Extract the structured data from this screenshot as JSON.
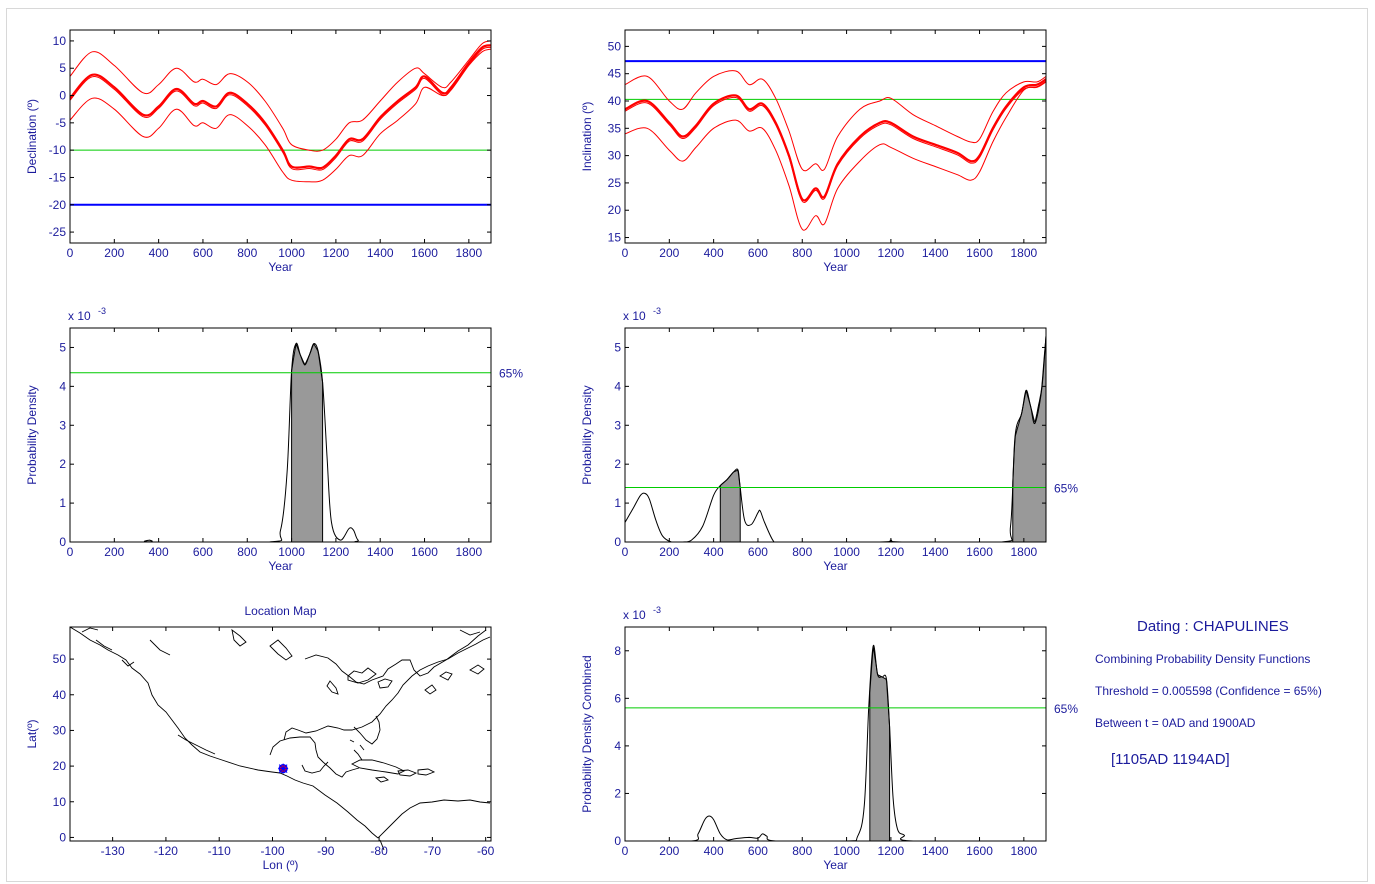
{
  "colors": {
    "axis": "#000000",
    "tick_text": "#1b1b9c",
    "curve": "#ff0000",
    "reference_blue": "#0000ff",
    "reference_green": "#00cc00",
    "fill_gray": "#999999",
    "density_line": "#000000",
    "map_marker": "#0000ff"
  },
  "chart_data": [
    {
      "id": "declination",
      "type": "line",
      "xlabel": "Year",
      "ylabel": "Declination (º)",
      "xlim": [
        0,
        1900
      ],
      "ylim": [
        -27,
        12
      ],
      "xticks": [
        0,
        200,
        400,
        600,
        800,
        1000,
        1200,
        1400,
        1600,
        1800
      ],
      "yticks": [
        -25,
        -20,
        -15,
        -10,
        -5,
        0,
        5,
        10
      ],
      "reference_lines": [
        {
          "color": "blue",
          "y": -20
        },
        {
          "color": "green",
          "y": -10
        }
      ],
      "series": [
        {
          "role": "mean",
          "x": [
            0,
            100,
            200,
            330,
            400,
            480,
            560,
            600,
            660,
            720,
            800,
            880,
            960,
            1000,
            1080,
            1140,
            1200,
            1260,
            1320,
            1400,
            1480,
            1560,
            1600,
            1680,
            1720,
            1800,
            1860,
            1900
          ],
          "y": [
            -0.5,
            3.8,
            1.5,
            -3.5,
            -2.0,
            1.2,
            -1.5,
            -1.0,
            -2.0,
            0.5,
            -1.5,
            -5.0,
            -10.0,
            -13.0,
            -13.0,
            -13.2,
            -11.0,
            -8.0,
            -8.0,
            -4.0,
            -1.0,
            1.5,
            3.5,
            0.5,
            1.5,
            6.0,
            8.8,
            9.2
          ]
        },
        {
          "role": "upper",
          "x": [
            0,
            100,
            200,
            330,
            400,
            480,
            560,
            600,
            660,
            720,
            800,
            880,
            960,
            1000,
            1080,
            1140,
            1200,
            1260,
            1320,
            1400,
            1480,
            1560,
            1600,
            1680,
            1720,
            1800,
            1860,
            1900
          ],
          "y": [
            3.5,
            8.0,
            5.5,
            0.5,
            2.0,
            5.0,
            2.5,
            3.0,
            2.0,
            4.0,
            2.5,
            -1.0,
            -6.0,
            -9.0,
            -10.0,
            -10.0,
            -8.0,
            -5.0,
            -4.5,
            -1.0,
            2.5,
            5.0,
            4.0,
            1.5,
            2.5,
            6.5,
            9.5,
            10.0
          ]
        },
        {
          "role": "lower",
          "x": [
            0,
            100,
            200,
            330,
            400,
            480,
            560,
            600,
            660,
            720,
            800,
            880,
            960,
            1000,
            1080,
            1140,
            1200,
            1260,
            1320,
            1400,
            1480,
            1560,
            1600,
            1680,
            1720,
            1800,
            1860,
            1900
          ],
          "y": [
            -4.5,
            -0.5,
            -2.5,
            -7.5,
            -6.0,
            -2.5,
            -5.5,
            -5.0,
            -6.0,
            -3.5,
            -5.5,
            -9.0,
            -14.0,
            -15.5,
            -15.8,
            -15.5,
            -13.5,
            -11.0,
            -11.0,
            -7.0,
            -4.5,
            -1.5,
            1.5,
            0.0,
            1.0,
            5.5,
            8.0,
            8.5
          ]
        }
      ]
    },
    {
      "id": "inclination",
      "type": "line",
      "xlabel": "Year",
      "ylabel": "Inclination (º)",
      "xlim": [
        0,
        1900
      ],
      "ylim": [
        14,
        53
      ],
      "xticks": [
        0,
        200,
        400,
        600,
        800,
        1000,
        1200,
        1400,
        1600,
        1800
      ],
      "yticks": [
        15,
        20,
        25,
        30,
        35,
        40,
        45,
        50
      ],
      "reference_lines": [
        {
          "color": "blue",
          "y": 47.3
        },
        {
          "color": "green",
          "y": 40.3
        }
      ],
      "series": [
        {
          "role": "mean",
          "x": [
            0,
            100,
            200,
            260,
            320,
            400,
            500,
            560,
            620,
            680,
            740,
            800,
            860,
            900,
            960,
            1060,
            1150,
            1200,
            1300,
            1400,
            1500,
            1560,
            1600,
            1660,
            1720,
            1800,
            1860,
            1900
          ],
          "y": [
            38.5,
            40.0,
            36.0,
            33.5,
            35.5,
            39.5,
            41.0,
            38.5,
            39.5,
            36.0,
            30.0,
            22.0,
            24.0,
            22.5,
            28.5,
            33.5,
            36.0,
            36.0,
            33.5,
            32.0,
            30.5,
            29.0,
            30.0,
            35.0,
            39.0,
            42.5,
            43.0,
            44.0
          ]
        },
        {
          "role": "upper",
          "x": [
            0,
            100,
            200,
            260,
            320,
            400,
            500,
            560,
            620,
            680,
            740,
            800,
            860,
            900,
            960,
            1060,
            1150,
            1200,
            1300,
            1400,
            1500,
            1560,
            1600,
            1660,
            1720,
            1800,
            1860,
            1900
          ],
          "y": [
            43.0,
            44.5,
            40.0,
            38.5,
            41.5,
            44.5,
            45.5,
            43.0,
            44.0,
            40.5,
            34.5,
            27.5,
            28.5,
            27.5,
            33.5,
            38.5,
            40.0,
            40.5,
            37.5,
            35.5,
            33.5,
            32.5,
            33.0,
            38.0,
            41.5,
            43.5,
            43.5,
            44.5
          ]
        },
        {
          "role": "lower",
          "x": [
            0,
            100,
            200,
            260,
            320,
            400,
            500,
            560,
            620,
            680,
            740,
            800,
            860,
            900,
            960,
            1060,
            1150,
            1200,
            1300,
            1400,
            1500,
            1560,
            1600,
            1660,
            1720,
            1800,
            1860,
            1900
          ],
          "y": [
            34.0,
            35.0,
            31.0,
            29.0,
            31.5,
            35.0,
            36.5,
            34.5,
            35.0,
            31.0,
            24.5,
            16.5,
            19.0,
            17.5,
            24.0,
            29.0,
            32.0,
            31.5,
            29.5,
            28.0,
            26.5,
            25.5,
            27.0,
            32.5,
            37.0,
            42.0,
            42.5,
            43.5
          ]
        }
      ]
    },
    {
      "id": "declination-density",
      "type": "area",
      "xlabel": "Year",
      "ylabel": "Probability Density",
      "scale_label": "x 10",
      "scale_exponent": "-3",
      "xlim": [
        0,
        1900
      ],
      "ylim": [
        0,
        5.5
      ],
      "xticks": [
        0,
        200,
        400,
        600,
        800,
        1000,
        1200,
        1400,
        1600,
        1800
      ],
      "yticks": [
        0,
        1,
        2,
        3,
        4,
        5
      ],
      "threshold": {
        "y": 4.35,
        "label": "65%"
      },
      "shaded_intervals": [
        [
          1000,
          1140
        ]
      ],
      "x": [
        0,
        340,
        360,
        380,
        900,
        950,
        980,
        1000,
        1020,
        1040,
        1060,
        1080,
        1100,
        1120,
        1140,
        1160,
        1180,
        1220,
        1260,
        1280,
        1300,
        1340,
        1900
      ],
      "y": [
        0,
        0,
        0.05,
        0,
        0,
        0.3,
        1.8,
        4.4,
        5.1,
        4.8,
        4.55,
        4.8,
        5.1,
        4.9,
        4.1,
        2.2,
        0.5,
        0.05,
        0.35,
        0.3,
        0.05,
        0,
        0
      ]
    },
    {
      "id": "inclination-density",
      "type": "area",
      "xlabel": "Year",
      "ylabel": "Probability Density",
      "scale_label": "x 10",
      "scale_exponent": "-3",
      "xlim": [
        0,
        1900
      ],
      "ylim": [
        0,
        5.5
      ],
      "xticks": [
        0,
        200,
        400,
        600,
        800,
        1000,
        1200,
        1400,
        1600,
        1800
      ],
      "yticks": [
        0,
        1,
        2,
        3,
        4,
        5
      ],
      "threshold": {
        "y": 1.4,
        "label": "65%"
      },
      "shaded_intervals": [
        [
          430,
          520
        ],
        [
          1750,
          1900
        ]
      ],
      "x": [
        0,
        40,
        70,
        90,
        110,
        140,
        170,
        210,
        260,
        300,
        350,
        400,
        430,
        460,
        490,
        510,
        520,
        540,
        570,
        600,
        610,
        630,
        670,
        700,
        1150,
        1200,
        1250,
        1700,
        1740,
        1760,
        1790,
        1810,
        1830,
        1850,
        1880,
        1900
      ],
      "y": [
        0.5,
        0.9,
        1.2,
        1.25,
        1.1,
        0.55,
        0.15,
        0,
        0,
        0.05,
        0.4,
        1.2,
        1.45,
        1.6,
        1.8,
        1.85,
        1.4,
        0.55,
        0.45,
        0.75,
        0.8,
        0.5,
        0.02,
        0,
        0,
        0.05,
        0,
        0,
        0.4,
        2.7,
        3.3,
        3.9,
        3.5,
        3.05,
        3.9,
        5.3
      ]
    },
    {
      "id": "location-map",
      "type": "scatter",
      "title": "Location Map",
      "xlabel": "Lon (º)",
      "ylabel": "Lat(º)",
      "xlim": [
        -138,
        -59
      ],
      "ylim": [
        -1,
        59
      ],
      "xticks": [
        -130,
        -120,
        -110,
        -100,
        -90,
        -80,
        -70,
        -60
      ],
      "yticks": [
        0,
        10,
        20,
        30,
        40,
        50
      ],
      "site": {
        "lon": -98,
        "lat": 19.3
      }
    },
    {
      "id": "combined-density",
      "type": "area",
      "xlabel": "Year",
      "ylabel": "Probability Density Combined",
      "scale_label": "x 10",
      "scale_exponent": "-3",
      "xlim": [
        0,
        1900
      ],
      "ylim": [
        0,
        9
      ],
      "xticks": [
        0,
        200,
        400,
        600,
        800,
        1000,
        1200,
        1400,
        1600,
        1800
      ],
      "yticks": [
        0,
        2,
        4,
        6,
        8
      ],
      "threshold": {
        "y": 5.6,
        "label": "65%"
      },
      "shaded_intervals": [
        [
          1105,
          1194
        ]
      ],
      "x": [
        0,
        300,
        330,
        360,
        380,
        400,
        430,
        460,
        500,
        560,
        600,
        620,
        640,
        680,
        1000,
        1050,
        1080,
        1100,
        1120,
        1140,
        1160,
        1180,
        1194,
        1210,
        1230,
        1260,
        1300,
        1900
      ],
      "y": [
        0,
        0,
        0.3,
        0.9,
        1.05,
        0.9,
        0.3,
        0.05,
        0.1,
        0.15,
        0.12,
        0.3,
        0.2,
        0,
        0,
        0.2,
        1.5,
        5.6,
        8.2,
        7.0,
        6.9,
        6.8,
        4.8,
        1.8,
        0.5,
        0.25,
        0,
        0
      ]
    }
  ],
  "info": {
    "title": "Dating : CHAPULINES",
    "method": "Combining Probability Density Functions",
    "threshold": "Threshold = 0.005598 (Confidence = 65%)",
    "between": "Between t = 0AD and 1900AD",
    "interval": "[1105AD   1194AD]"
  }
}
